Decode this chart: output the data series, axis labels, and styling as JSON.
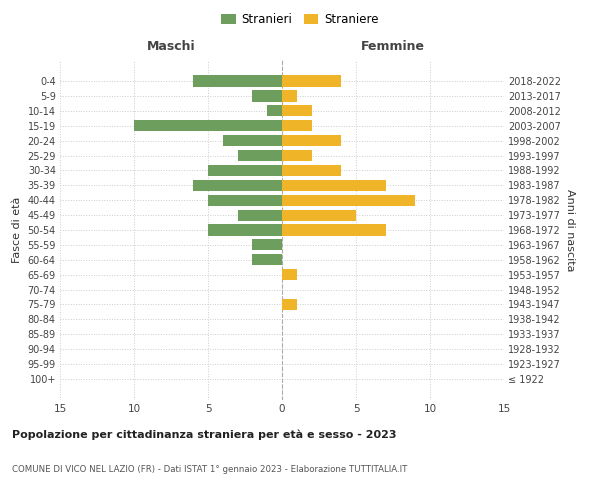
{
  "age_groups": [
    "100+",
    "95-99",
    "90-94",
    "85-89",
    "80-84",
    "75-79",
    "70-74",
    "65-69",
    "60-64",
    "55-59",
    "50-54",
    "45-49",
    "40-44",
    "35-39",
    "30-34",
    "25-29",
    "20-24",
    "15-19",
    "10-14",
    "5-9",
    "0-4"
  ],
  "birth_years": [
    "≤ 1922",
    "1923-1927",
    "1928-1932",
    "1933-1937",
    "1938-1942",
    "1943-1947",
    "1948-1952",
    "1953-1957",
    "1958-1962",
    "1963-1967",
    "1968-1972",
    "1973-1977",
    "1978-1982",
    "1983-1987",
    "1988-1992",
    "1993-1997",
    "1998-2002",
    "2003-2007",
    "2008-2012",
    "2013-2017",
    "2018-2022"
  ],
  "males": [
    0,
    0,
    0,
    0,
    0,
    0,
    0,
    0,
    2,
    2,
    5,
    3,
    5,
    6,
    5,
    3,
    4,
    10,
    1,
    2,
    6
  ],
  "females": [
    0,
    0,
    0,
    0,
    0,
    1,
    0,
    1,
    0,
    0,
    7,
    5,
    9,
    7,
    4,
    2,
    4,
    2,
    2,
    1,
    4
  ],
  "male_color": "#6d9e5e",
  "female_color": "#f0b429",
  "male_label": "Stranieri",
  "female_label": "Straniere",
  "title": "Popolazione per cittadinanza straniera per età e sesso - 2023",
  "subtitle": "COMUNE DI VICO NEL LAZIO (FR) - Dati ISTAT 1° gennaio 2023 - Elaborazione TUTTITALIA.IT",
  "left_header": "Maschi",
  "right_header": "Femmine",
  "left_ylabel": "Fasce di età",
  "right_ylabel": "Anni di nascita",
  "xlim": 15,
  "background_color": "#ffffff",
  "grid_color": "#cccccc"
}
